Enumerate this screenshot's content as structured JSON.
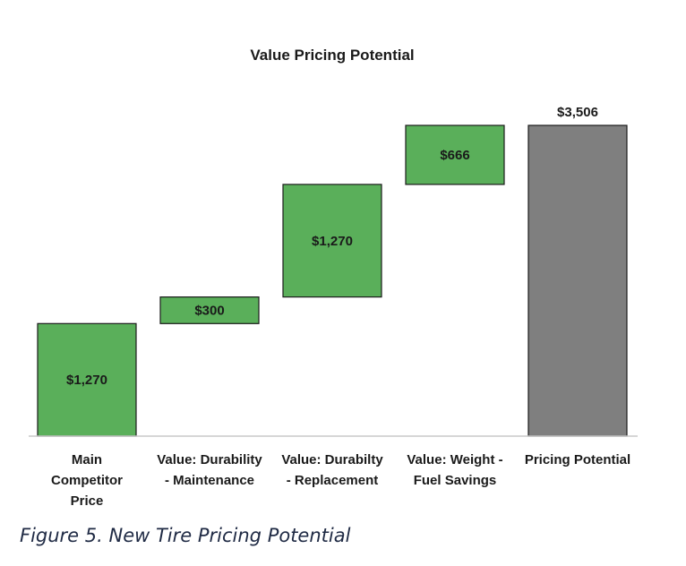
{
  "chart_data": {
    "type": "bar",
    "subtype": "waterfall",
    "title": "Value Pricing Potential",
    "categories": [
      [
        "Main",
        "Competitor",
        "Price"
      ],
      [
        "Value: Durability",
        "- Maintenance"
      ],
      [
        "Value: Durabilty",
        "- Replacement"
      ],
      [
        "Value: Weight -",
        "Fuel Savings"
      ],
      [
        "Pricing Potential"
      ]
    ],
    "steps": [
      {
        "base": 0,
        "value": 1270,
        "label": "$1,270",
        "kind": "increase"
      },
      {
        "base": 1270,
        "value": 300,
        "label": "$300",
        "kind": "increase"
      },
      {
        "base": 1570,
        "value": 1270,
        "label": "$1,270",
        "kind": "increase"
      },
      {
        "base": 2840,
        "value": 666,
        "label": "$666",
        "kind": "increase"
      },
      {
        "base": 0,
        "value": 3506,
        "label": "$3,506",
        "kind": "total"
      }
    ],
    "ylim": [
      0,
      3506
    ],
    "xlabel": "",
    "ylabel": "",
    "grid": false,
    "colors": {
      "increase": "#5aaf5a",
      "total": "#7f7f7f",
      "stroke": "#1a1a1a",
      "axis": "#c8c8c8"
    }
  },
  "caption": "Figure 5. New Tire Pricing Potential"
}
